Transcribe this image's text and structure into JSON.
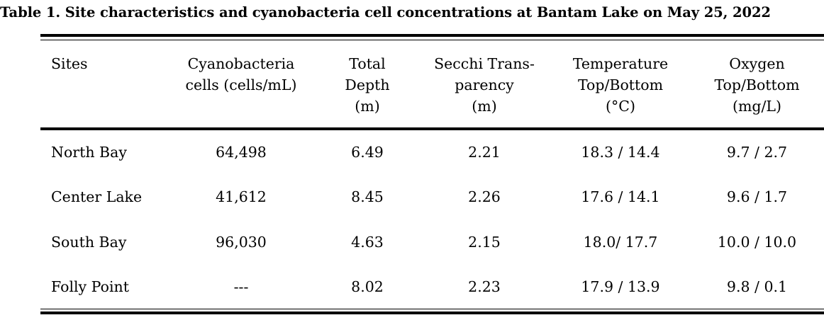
{
  "caption": "Table 1. Site characteristics and cyanobacteria cell concentrations at Bantam Lake on May 25, 2022",
  "table": {
    "headers": [
      {
        "lines": [
          "Sites"
        ]
      },
      {
        "lines": [
          "Cyanobacteria",
          "cells (cells/mL)"
        ]
      },
      {
        "lines": [
          "Total",
          "Depth",
          "(m)"
        ]
      },
      {
        "lines": [
          "Secchi Trans-",
          "parency",
          "(m)"
        ]
      },
      {
        "lines": [
          "Temperature",
          "Top/Bottom",
          "(°C)"
        ]
      },
      {
        "lines": [
          "Oxygen",
          "Top/Bottom",
          "(mg/L)"
        ]
      }
    ],
    "rows": [
      {
        "site": "North Bay",
        "cells": "64,498",
        "depth": "6.49",
        "secchi": "2.21",
        "temp": "18.3 / 14.4",
        "oxygen": "9.7 / 2.7"
      },
      {
        "site": "Center Lake",
        "cells": "41,612",
        "depth": "8.45",
        "secchi": "2.26",
        "temp": "17.6 / 14.1",
        "oxygen": "9.6 / 1.7"
      },
      {
        "site": "South Bay",
        "cells": "96,030",
        "depth": "4.63",
        "secchi": "2.15",
        "temp": "18.0/ 17.7",
        "oxygen": "10.0 / 10.0"
      },
      {
        "site": "Folly Point",
        "cells": "---",
        "depth": "8.02",
        "secchi": "2.23",
        "temp": "17.9 / 13.9",
        "oxygen": "9.8 / 0.1"
      }
    ]
  }
}
